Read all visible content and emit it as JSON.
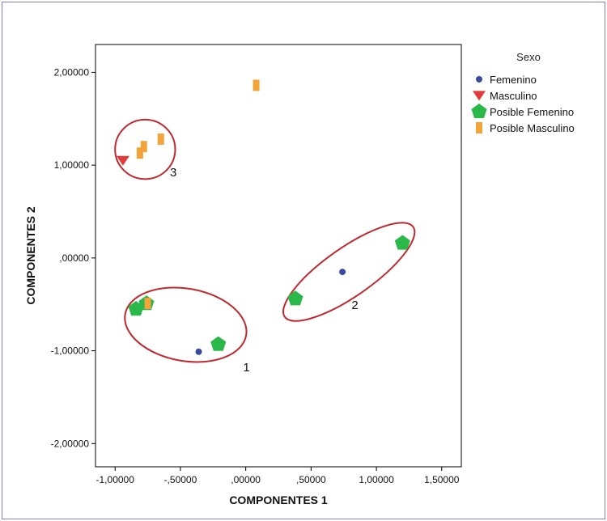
{
  "chart_data": {
    "type": "scatter",
    "xlabel": "COMPONENTES 1",
    "ylabel": "COMPONENTES 2",
    "xlim": [
      -1.15,
      1.65
    ],
    "ylim": [
      -2.25,
      2.3
    ],
    "x_ticks": [
      -1.0,
      -0.5,
      0.0,
      0.5,
      1.0,
      1.5
    ],
    "x_tick_labels": [
      "-1,00000",
      "-,50000",
      ",00000",
      ",50000",
      "1,00000",
      "1,50000"
    ],
    "y_ticks": [
      2.0,
      1.0,
      0.0,
      -1.0,
      -2.0
    ],
    "y_tick_labels": [
      "2,00000",
      "1,00000",
      ",00000",
      "-1,00000",
      "-2,00000"
    ],
    "grid": false,
    "legend": {
      "title": "Sexo",
      "placement": "right-top"
    },
    "series": [
      {
        "name": "Femenino",
        "marker": "circle",
        "color": "#3b4aa0",
        "points": [
          [
            -0.36,
            -1.01
          ],
          [
            0.74,
            -0.15
          ]
        ]
      },
      {
        "name": "Masculino",
        "marker": "triangle-down",
        "color": "#e03c3c",
        "points": [
          [
            -0.94,
            1.05
          ]
        ]
      },
      {
        "name": "Posible Femenino",
        "marker": "pentagon",
        "color": "#2bb84a",
        "points": [
          [
            -0.84,
            -0.55
          ],
          [
            -0.76,
            -0.49
          ],
          [
            -0.21,
            -0.93
          ],
          [
            0.38,
            -0.44
          ],
          [
            1.2,
            0.16
          ]
        ]
      },
      {
        "name": "Posible Masculino",
        "marker": "bar",
        "color": "#f2a33a",
        "points": [
          [
            -0.81,
            1.13
          ],
          [
            -0.78,
            1.2
          ],
          [
            -0.65,
            1.28
          ],
          [
            -0.75,
            -0.49
          ],
          [
            0.08,
            1.86
          ]
        ]
      }
    ],
    "annotations": [
      {
        "label": "1",
        "shape": "ellipse",
        "center": [
          -0.46,
          -0.72
        ],
        "rx": 0.47,
        "ry": 0.39,
        "rotation_deg": 10,
        "label_at": [
          -0.02,
          -1.22
        ]
      },
      {
        "label": "2",
        "shape": "ellipse",
        "center": [
          0.79,
          -0.15
        ],
        "rx": 0.6,
        "ry": 0.26,
        "rotation_deg": -35,
        "label_at": [
          0.81,
          -0.55
        ]
      },
      {
        "label": "3",
        "shape": "ellipse",
        "center": [
          -0.77,
          1.17
        ],
        "rx": 0.23,
        "ry": 0.32,
        "rotation_deg": 0,
        "label_at": [
          -0.58,
          0.88
        ]
      }
    ]
  }
}
